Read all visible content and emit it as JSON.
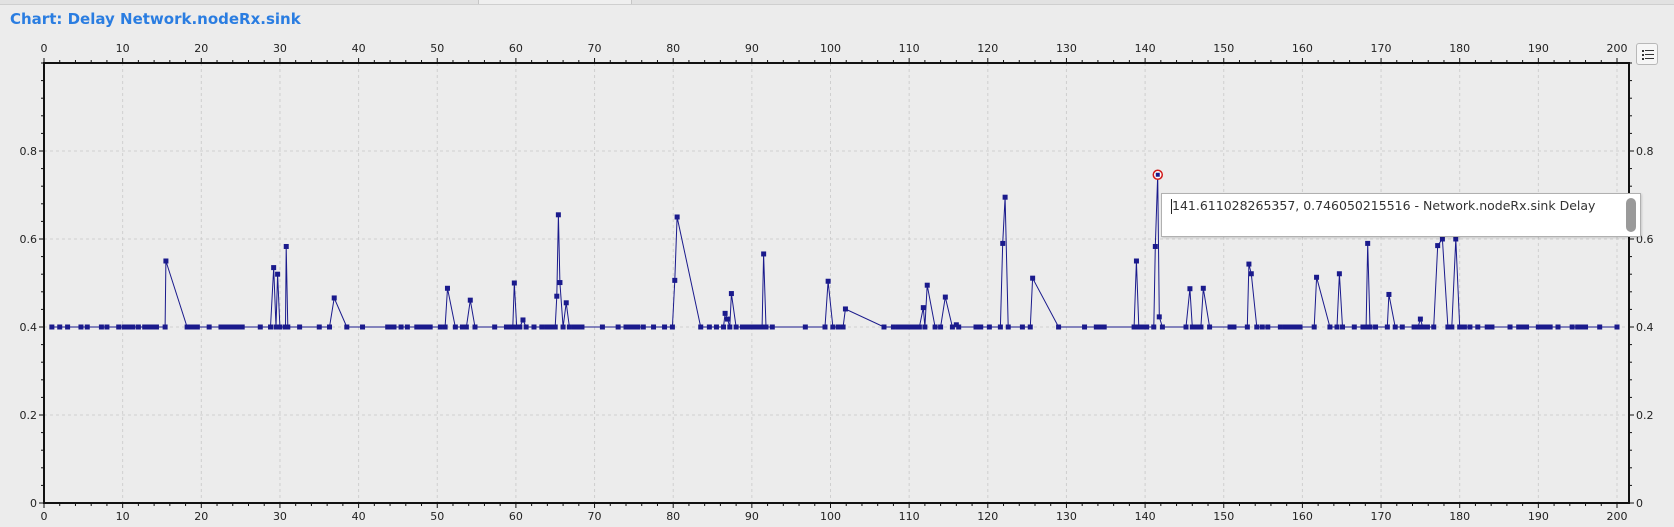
{
  "window": {
    "title": "Chart: Delay Network.nodeRx.sink"
  },
  "legend_button": {
    "icon": "legend-list-icon"
  },
  "tooltip": {
    "text": "141.611028265357, 0.746050215516 - Network.nodeRx.sink Delay"
  },
  "colors": {
    "series": "#1a1a8c",
    "title": "#2a7de1",
    "highlight": "#d11a1a"
  },
  "chart_data": {
    "type": "line",
    "title": "",
    "xlabel": "",
    "ylabel": "",
    "xlim": [
      0,
      200
    ],
    "ylim": [
      0,
      1.0
    ],
    "x_ticks": [
      0,
      10,
      20,
      30,
      40,
      50,
      60,
      70,
      80,
      90,
      100,
      110,
      120,
      130,
      140,
      150,
      160,
      170,
      180,
      190,
      200
    ],
    "y_ticks": [
      0,
      0.2,
      0.4,
      0.6,
      0.8
    ],
    "y_tick_labels": [
      "0",
      "0.2",
      "0.4",
      "0.6",
      "0.8"
    ],
    "grid": true,
    "legend": "none",
    "series": [
      {
        "name": "Network.nodeRx.sink Delay",
        "highlight": [
          141.611028265357,
          0.746050215516
        ],
        "points": [
          [
            1.0,
            0.4
          ],
          [
            2.0,
            0.4
          ],
          [
            3.0,
            0.4
          ],
          [
            4.7,
            0.4
          ],
          [
            5.5,
            0.4
          ],
          [
            7.3,
            0.4
          ],
          [
            8.0,
            0.4
          ],
          [
            9.5,
            0.4
          ],
          [
            10.2,
            0.4
          ],
          [
            10.8,
            0.4
          ],
          [
            11.3,
            0.4
          ],
          [
            12.0,
            0.4
          ],
          [
            12.8,
            0.4
          ],
          [
            13.3,
            0.4
          ],
          [
            13.8,
            0.4
          ],
          [
            14.3,
            0.4
          ],
          [
            15.4,
            0.4
          ],
          [
            15.5,
            0.55
          ],
          [
            18.2,
            0.4
          ],
          [
            18.6,
            0.4
          ],
          [
            19.0,
            0.4
          ],
          [
            19.5,
            0.4
          ],
          [
            21.0,
            0.4
          ],
          [
            22.5,
            0.4
          ],
          [
            23.0,
            0.4
          ],
          [
            23.5,
            0.4
          ],
          [
            24.0,
            0.4
          ],
          [
            24.6,
            0.4
          ],
          [
            25.2,
            0.4
          ],
          [
            27.5,
            0.4
          ],
          [
            28.8,
            0.4
          ],
          [
            29.2,
            0.535
          ],
          [
            29.5,
            0.4
          ],
          [
            29.7,
            0.52
          ],
          [
            30.0,
            0.4
          ],
          [
            30.7,
            0.4
          ],
          [
            30.8,
            0.583
          ],
          [
            31.0,
            0.4
          ],
          [
            32.5,
            0.4
          ],
          [
            35.0,
            0.4
          ],
          [
            36.3,
            0.4
          ],
          [
            36.9,
            0.466
          ],
          [
            38.5,
            0.4
          ],
          [
            40.5,
            0.4
          ],
          [
            43.7,
            0.4
          ],
          [
            44.1,
            0.4
          ],
          [
            44.5,
            0.4
          ],
          [
            45.4,
            0.4
          ],
          [
            46.2,
            0.4
          ],
          [
            47.4,
            0.4
          ],
          [
            47.9,
            0.4
          ],
          [
            48.3,
            0.4
          ],
          [
            48.7,
            0.4
          ],
          [
            49.1,
            0.4
          ],
          [
            50.4,
            0.4
          ],
          [
            51.0,
            0.4
          ],
          [
            51.3,
            0.488
          ],
          [
            52.3,
            0.4
          ],
          [
            53.2,
            0.4
          ],
          [
            53.7,
            0.4
          ],
          [
            54.2,
            0.461
          ],
          [
            54.8,
            0.4
          ],
          [
            57.3,
            0.4
          ],
          [
            58.8,
            0.4
          ],
          [
            59.2,
            0.4
          ],
          [
            59.6,
            0.4
          ],
          [
            59.8,
            0.5
          ],
          [
            60.1,
            0.4
          ],
          [
            60.5,
            0.4
          ],
          [
            60.9,
            0.416
          ],
          [
            61.3,
            0.4
          ],
          [
            62.3,
            0.4
          ],
          [
            63.3,
            0.4
          ],
          [
            63.9,
            0.4
          ],
          [
            64.4,
            0.4
          ],
          [
            65.0,
            0.4
          ],
          [
            65.2,
            0.47
          ],
          [
            65.4,
            0.655
          ],
          [
            65.6,
            0.501
          ],
          [
            66.0,
            0.4
          ],
          [
            66.4,
            0.455
          ],
          [
            66.8,
            0.4
          ],
          [
            67.4,
            0.4
          ],
          [
            67.9,
            0.4
          ],
          [
            68.4,
            0.4
          ],
          [
            71.0,
            0.4
          ],
          [
            73.0,
            0.4
          ],
          [
            74.0,
            0.4
          ],
          [
            74.5,
            0.4
          ],
          [
            75.0,
            0.4
          ],
          [
            75.5,
            0.4
          ],
          [
            76.2,
            0.4
          ],
          [
            77.5,
            0.4
          ],
          [
            78.9,
            0.4
          ],
          [
            79.9,
            0.4
          ],
          [
            80.2,
            0.506
          ],
          [
            80.5,
            0.65
          ],
          [
            83.5,
            0.4
          ],
          [
            84.6,
            0.4
          ],
          [
            85.5,
            0.4
          ],
          [
            86.4,
            0.4
          ],
          [
            86.6,
            0.431
          ],
          [
            86.9,
            0.418
          ],
          [
            87.2,
            0.4
          ],
          [
            87.4,
            0.476
          ],
          [
            88.0,
            0.4
          ],
          [
            88.8,
            0.4
          ],
          [
            89.2,
            0.4
          ],
          [
            89.7,
            0.4
          ],
          [
            90.3,
            0.4
          ],
          [
            90.8,
            0.4
          ],
          [
            91.3,
            0.4
          ],
          [
            91.5,
            0.566
          ],
          [
            91.8,
            0.4
          ],
          [
            92.6,
            0.4
          ],
          [
            96.8,
            0.4
          ],
          [
            99.3,
            0.4
          ],
          [
            99.7,
            0.504
          ],
          [
            100.3,
            0.4
          ],
          [
            101.0,
            0.4
          ],
          [
            101.6,
            0.4
          ],
          [
            101.9,
            0.441
          ],
          [
            106.8,
            0.4
          ],
          [
            108.0,
            0.4
          ],
          [
            108.6,
            0.4
          ],
          [
            109.0,
            0.4
          ],
          [
            109.6,
            0.4
          ],
          [
            110.2,
            0.4
          ],
          [
            110.8,
            0.4
          ],
          [
            111.3,
            0.4
          ],
          [
            111.8,
            0.444
          ],
          [
            112.0,
            0.4
          ],
          [
            112.3,
            0.495
          ],
          [
            113.3,
            0.4
          ],
          [
            114.0,
            0.4
          ],
          [
            114.6,
            0.468
          ],
          [
            115.5,
            0.4
          ],
          [
            116.0,
            0.405
          ],
          [
            116.3,
            0.4
          ],
          [
            118.5,
            0.4
          ],
          [
            119.1,
            0.4
          ],
          [
            120.2,
            0.4
          ],
          [
            121.6,
            0.4
          ],
          [
            121.9,
            0.59
          ],
          [
            122.2,
            0.695
          ],
          [
            122.6,
            0.4
          ],
          [
            124.4,
            0.4
          ],
          [
            125.4,
            0.4
          ],
          [
            125.7,
            0.511
          ],
          [
            129.0,
            0.4
          ],
          [
            132.3,
            0.4
          ],
          [
            133.8,
            0.4
          ],
          [
            134.2,
            0.4
          ],
          [
            134.8,
            0.4
          ],
          [
            138.6,
            0.4
          ],
          [
            138.9,
            0.55
          ],
          [
            139.2,
            0.4
          ],
          [
            139.7,
            0.4
          ],
          [
            140.2,
            0.4
          ],
          [
            141.1,
            0.4
          ],
          [
            141.3,
            0.583
          ],
          [
            141.6,
            0.746
          ],
          [
            141.8,
            0.423
          ],
          [
            142.2,
            0.4
          ],
          [
            145.2,
            0.4
          ],
          [
            145.7,
            0.487
          ],
          [
            146.0,
            0.4
          ],
          [
            146.4,
            0.4
          ],
          [
            146.7,
            0.4
          ],
          [
            147.1,
            0.4
          ],
          [
            147.4,
            0.488
          ],
          [
            148.2,
            0.4
          ],
          [
            150.8,
            0.4
          ],
          [
            151.3,
            0.4
          ],
          [
            153.0,
            0.4
          ],
          [
            153.2,
            0.543
          ],
          [
            153.5,
            0.521
          ],
          [
            154.2,
            0.4
          ],
          [
            154.9,
            0.4
          ],
          [
            155.6,
            0.4
          ],
          [
            157.2,
            0.4
          ],
          [
            157.8,
            0.4
          ],
          [
            158.3,
            0.4
          ],
          [
            158.7,
            0.4
          ],
          [
            159.2,
            0.4
          ],
          [
            159.7,
            0.4
          ],
          [
            161.5,
            0.4
          ],
          [
            161.8,
            0.513
          ],
          [
            163.5,
            0.4
          ],
          [
            164.4,
            0.4
          ],
          [
            164.7,
            0.521
          ],
          [
            165.1,
            0.4
          ],
          [
            166.6,
            0.4
          ],
          [
            167.7,
            0.4
          ],
          [
            168.1,
            0.4
          ],
          [
            168.3,
            0.59
          ],
          [
            168.6,
            0.4
          ],
          [
            169.3,
            0.4
          ],
          [
            170.8,
            0.4
          ],
          [
            171.0,
            0.474
          ],
          [
            171.8,
            0.4
          ],
          [
            172.7,
            0.4
          ],
          [
            174.2,
            0.4
          ],
          [
            174.7,
            0.4
          ],
          [
            175.0,
            0.418
          ],
          [
            175.3,
            0.4
          ],
          [
            175.9,
            0.4
          ],
          [
            176.7,
            0.4
          ],
          [
            177.2,
            0.585
          ],
          [
            177.8,
            0.6
          ],
          [
            178.5,
            0.4
          ],
          [
            179.0,
            0.4
          ],
          [
            179.5,
            0.6
          ],
          [
            180.0,
            0.4
          ],
          [
            180.6,
            0.4
          ],
          [
            181.3,
            0.4
          ],
          [
            182.3,
            0.4
          ],
          [
            183.5,
            0.4
          ],
          [
            184.1,
            0.4
          ],
          [
            186.4,
            0.4
          ],
          [
            187.5,
            0.4
          ],
          [
            188.0,
            0.4
          ],
          [
            188.5,
            0.4
          ],
          [
            190.0,
            0.4
          ],
          [
            190.5,
            0.4
          ],
          [
            191.0,
            0.4
          ],
          [
            191.5,
            0.4
          ],
          [
            192.5,
            0.4
          ],
          [
            194.3,
            0.4
          ],
          [
            195.0,
            0.4
          ],
          [
            195.5,
            0.4
          ],
          [
            196.0,
            0.4
          ],
          [
            197.8,
            0.4
          ],
          [
            200.0,
            0.4
          ]
        ]
      }
    ]
  }
}
